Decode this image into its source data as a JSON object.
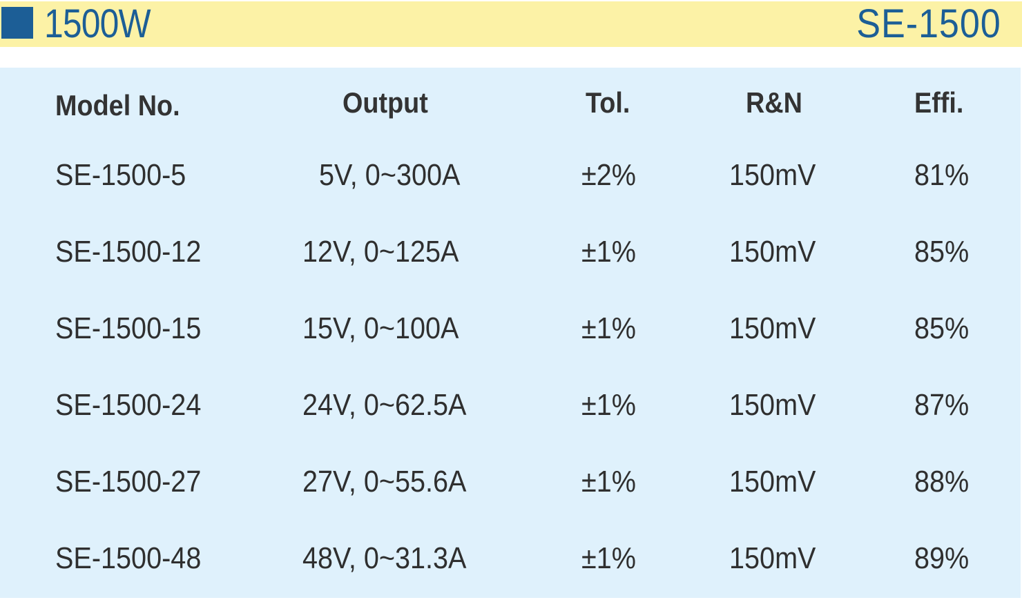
{
  "header": {
    "title": "1500W",
    "series": "SE-1500"
  },
  "table": {
    "columns": [
      "Model No.",
      "Output",
      "Tol.",
      "R&N",
      "Effi."
    ],
    "rows": [
      {
        "model": "SE-1500-5",
        "output": "5V, 0~300A",
        "tol": "±2%",
        "rn": "150mV",
        "eff": "81%"
      },
      {
        "model": "SE-1500-12",
        "output": "12V, 0~125A",
        "tol": "±1%",
        "rn": "150mV",
        "eff": "85%"
      },
      {
        "model": "SE-1500-15",
        "output": "15V, 0~100A",
        "tol": "±1%",
        "rn": "150mV",
        "eff": "85%"
      },
      {
        "model": "SE-1500-24",
        "output": "24V, 0~62.5A",
        "tol": "±1%",
        "rn": "150mV",
        "eff": "87%"
      },
      {
        "model": "SE-1500-27",
        "output": "27V, 0~55.6A",
        "tol": "±1%",
        "rn": "150mV",
        "eff": "88%"
      },
      {
        "model": "SE-1500-48",
        "output": "48V, 0~31.3A",
        "tol": "±1%",
        "rn": "150mV",
        "eff": "89%"
      }
    ]
  },
  "colors": {
    "header_band": "#fcf2a6",
    "accent_blue": "#1c5e96",
    "table_bg": "#dff1fc"
  }
}
